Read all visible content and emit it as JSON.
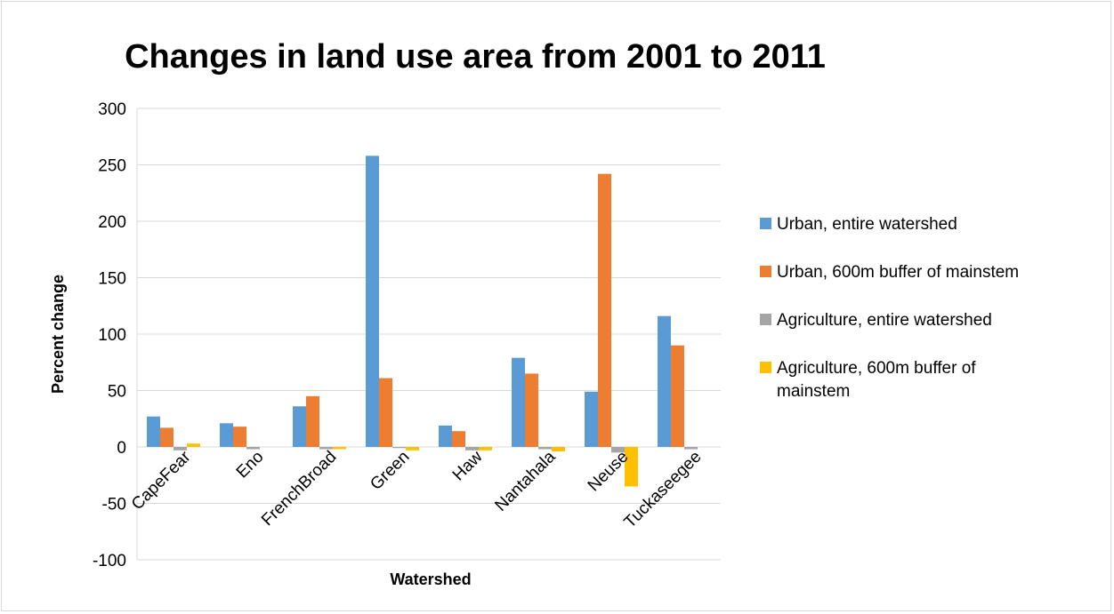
{
  "chart_data": {
    "type": "bar",
    "title": "Changes in land use area from 2001 to 2011",
    "xlabel": "Watershed",
    "ylabel": "Percent change",
    "ylim": [
      -100,
      300
    ],
    "yticks": [
      300,
      250,
      200,
      150,
      100,
      50,
      0,
      -50,
      -100
    ],
    "grid": true,
    "legend_position": "right",
    "categories": [
      "CapeFear",
      "Eno",
      "FrenchBroad",
      "Green",
      "Haw",
      "Nantahala",
      "Neuse",
      "Tuckaseegee"
    ],
    "series": [
      {
        "name": "Urban, entire watershed",
        "color": "#5B9BD5",
        "values": [
          27,
          21,
          36,
          258,
          19,
          79,
          49,
          116
        ]
      },
      {
        "name": "Urban, 600m buffer of mainstem",
        "color": "#ED7D31",
        "values": [
          17,
          18,
          45,
          61,
          14,
          65,
          242,
          90
        ]
      },
      {
        "name": "Agriculture, entire watershed",
        "color": "#A5A5A5",
        "values": [
          -3,
          -2,
          -2,
          -1,
          -3,
          -2,
          -5,
          -2
        ]
      },
      {
        "name": "Agriculture, 600m buffer of mainstem",
        "color": "#FFC000",
        "values": [
          3,
          0,
          -2,
          -3,
          -3,
          -4,
          -35,
          0
        ]
      }
    ]
  }
}
